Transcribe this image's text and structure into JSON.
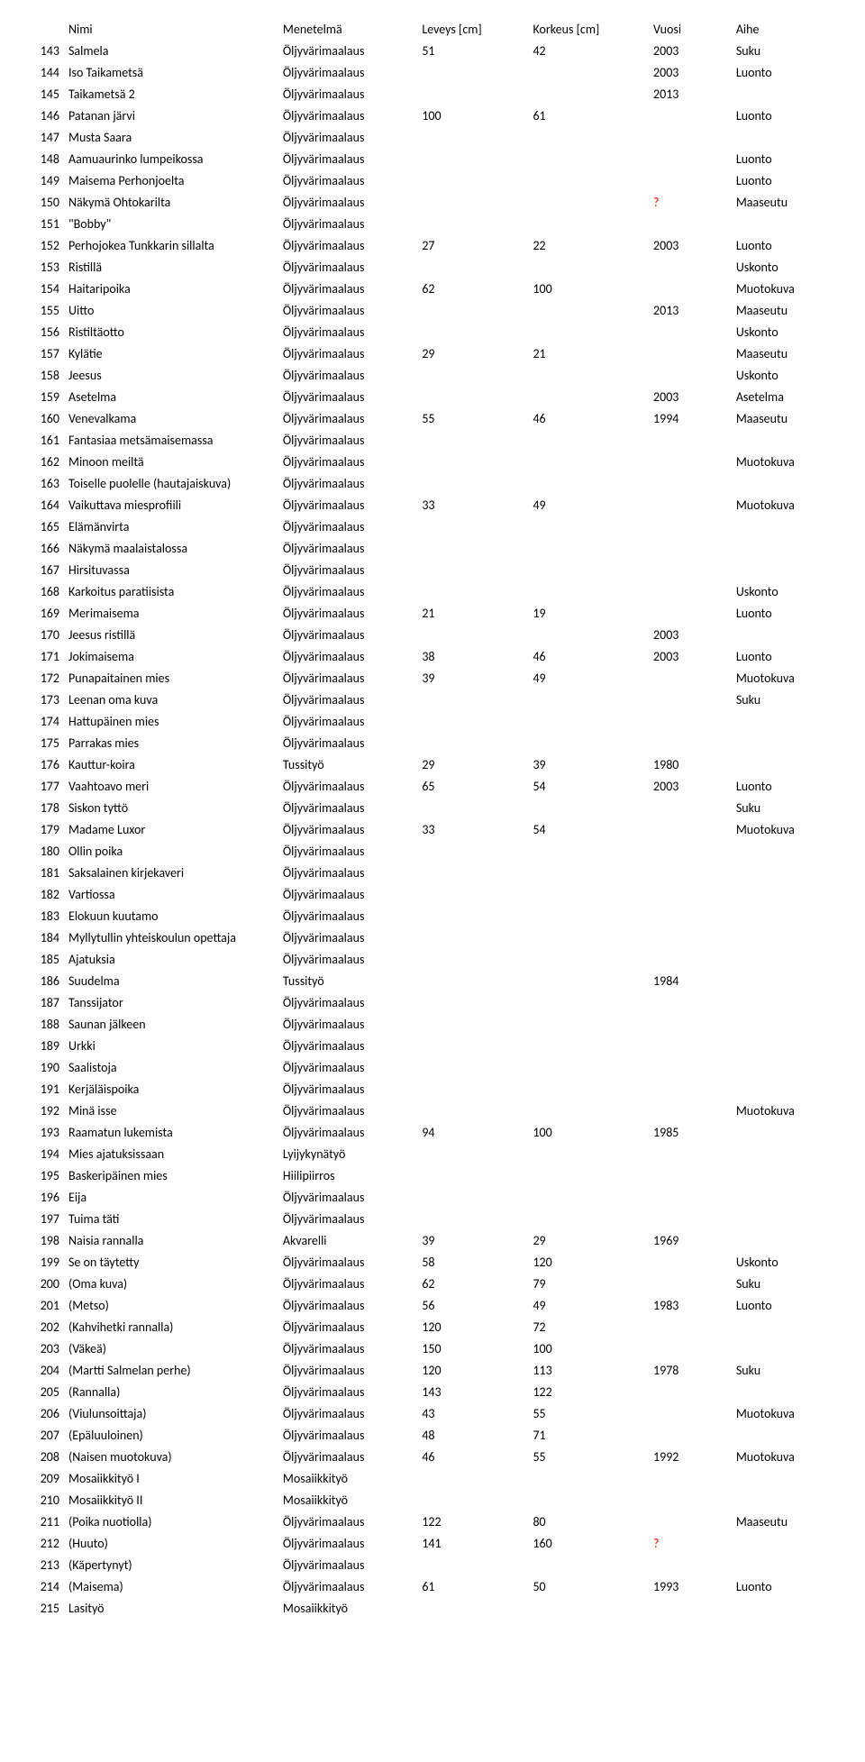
{
  "headers": {
    "name": "Nimi",
    "method": "Menetelmä",
    "width": "Leveys [cm]",
    "height": "Korkeus [cm]",
    "year": "Vuosi",
    "subject": "Aihe"
  },
  "rows": [
    {
      "num": "143",
      "name": "Salmela",
      "method": "Öljyvärimaalaus",
      "w": "51",
      "h": "42",
      "year": "2003",
      "subject": "Suku"
    },
    {
      "num": "144",
      "name": "Iso Taikametsä",
      "method": "Öljyvärimaalaus",
      "w": "",
      "h": "",
      "year": "2003",
      "subject": "Luonto"
    },
    {
      "num": "145",
      "name": "Taikametsä 2",
      "method": "Öljyvärimaalaus",
      "w": "",
      "h": "",
      "year": "2013",
      "subject": ""
    },
    {
      "num": "146",
      "name": "Patanan järvi",
      "method": "Öljyvärimaalaus",
      "w": "100",
      "h": "61",
      "year": "",
      "subject": "Luonto"
    },
    {
      "num": "147",
      "name": "Musta Saara",
      "method": "Öljyvärimaalaus",
      "w": "",
      "h": "",
      "year": "",
      "subject": ""
    },
    {
      "num": "148",
      "name": "Aamuaurinko lumpeikossa",
      "method": "Öljyvärimaalaus",
      "w": "",
      "h": "",
      "year": "",
      "subject": "Luonto"
    },
    {
      "num": "149",
      "name": " Maisema Perhonjoelta",
      "method": "Öljyvärimaalaus",
      "w": "",
      "h": "",
      "year": "",
      "subject": "Luonto"
    },
    {
      "num": "150",
      "name": " Näkymä Ohtokarilta",
      "method": "Öljyvärimaalaus",
      "w": "",
      "h": "",
      "year": "?",
      "year_red": true,
      "subject": "Maaseutu"
    },
    {
      "num": "151",
      "name": "\"Bobby\"",
      "method": "Öljyvärimaalaus",
      "w": "",
      "h": "",
      "year": "",
      "subject": ""
    },
    {
      "num": "152",
      "name": "Perhojokea Tunkkarin sillalta",
      "method": "Öljyvärimaalaus",
      "w": "27",
      "h": "22",
      "year": "2003",
      "subject": "Luonto"
    },
    {
      "num": "153",
      "name": "Ristillä",
      "method": "Öljyvärimaalaus",
      "w": "",
      "h": "",
      "year": "",
      "subject": "Uskonto"
    },
    {
      "num": "154",
      "name": "Haitaripoika",
      "method": "Öljyvärimaalaus",
      "w": "62",
      "h": "100",
      "year": "",
      "subject": "Muotokuva"
    },
    {
      "num": "155",
      "name": "Uitto",
      "method": "Öljyvärimaalaus",
      "w": "",
      "h": "",
      "year": "2013",
      "subject": "Maaseutu"
    },
    {
      "num": "156",
      "name": " Ristiltäotto",
      "method": "Öljyvärimaalaus",
      "w": "",
      "h": "",
      "year": "",
      "subject": "Uskonto"
    },
    {
      "num": "157",
      "name": "Kylätie",
      "method": "Öljyvärimaalaus",
      "w": "29",
      "h": "21",
      "year": "",
      "subject": "Maaseutu"
    },
    {
      "num": "158",
      "name": "Jeesus",
      "method": "Öljyvärimaalaus",
      "w": "",
      "h": "",
      "year": "",
      "subject": "Uskonto"
    },
    {
      "num": "159",
      "name": "Asetelma",
      "method": "Öljyvärimaalaus",
      "w": "",
      "h": "",
      "year": "2003",
      "subject": "Asetelma"
    },
    {
      "num": "160",
      "name": "Venevalkama",
      "method": "Öljyvärimaalaus",
      "w": "55",
      "h": "46",
      "year": "1994",
      "subject": "Maaseutu"
    },
    {
      "num": "161",
      "name": "Fantasiaa metsämaisemassa",
      "method": "Öljyvärimaalaus",
      "w": "",
      "h": "",
      "year": "",
      "subject": ""
    },
    {
      "num": "162",
      "name": "Minoon meiltä",
      "method": "Öljyvärimaalaus",
      "w": "",
      "h": "",
      "year": "",
      "subject": "Muotokuva"
    },
    {
      "num": "163",
      "name": "Toiselle puolelle (hautajaiskuva)",
      "method": "Öljyvärimaalaus",
      "w": "",
      "h": "",
      "year": "",
      "subject": ""
    },
    {
      "num": "164",
      "name": "Vaikuttava miesprofiili",
      "method": "Öljyvärimaalaus",
      "w": "33",
      "h": "49",
      "year": "",
      "subject": "Muotokuva"
    },
    {
      "num": "165",
      "name": " Elämänvirta",
      "method": "Öljyvärimaalaus",
      "w": "",
      "h": "",
      "year": "",
      "subject": ""
    },
    {
      "num": "166",
      "name": " Näkymä maalaistalossa",
      "method": "Öljyvärimaalaus",
      "w": "",
      "h": "",
      "year": "",
      "subject": ""
    },
    {
      "num": "167",
      "name": "Hirsituvassa",
      "method": "Öljyvärimaalaus",
      "w": "",
      "h": "",
      "year": "",
      "subject": ""
    },
    {
      "num": "168",
      "name": "Karkoitus paratiisista",
      "method": "Öljyvärimaalaus",
      "w": "",
      "h": "",
      "year": "",
      "subject": "Uskonto"
    },
    {
      "num": "169",
      "name": "Merimaisema",
      "method": "Öljyvärimaalaus",
      "w": "21",
      "h": "19",
      "year": "",
      "subject": "Luonto"
    },
    {
      "num": "170",
      "name": "Jeesus ristillä",
      "method": "Öljyvärimaalaus",
      "w": "",
      "h": "",
      "year": "2003",
      "subject": ""
    },
    {
      "num": "171",
      "name": "Jokimaisema",
      "method": "Öljyvärimaalaus",
      "w": "38",
      "h": "46",
      "year": "2003",
      "subject": "Luonto"
    },
    {
      "num": "172",
      "name": "Punapaitainen mies",
      "method": "Öljyvärimaalaus",
      "w": "39",
      "h": "49",
      "year": "",
      "subject": "Muotokuva"
    },
    {
      "num": "173",
      "name": "Leenan oma kuva",
      "method": "Öljyvärimaalaus",
      "w": "",
      "h": "",
      "year": "",
      "subject": "Suku"
    },
    {
      "num": "174",
      "name": "Hattupäinen mies",
      "method": "Öljyvärimaalaus",
      "w": "",
      "h": "",
      "year": "",
      "subject": ""
    },
    {
      "num": "175",
      "name": "Parrakas mies",
      "method": "Öljyvärimaalaus",
      "w": "",
      "h": "",
      "year": "",
      "subject": ""
    },
    {
      "num": "176",
      "name": "Kauttur-koira",
      "method": "Tussityö",
      "w": "29",
      "h": "39",
      "year": "1980",
      "subject": ""
    },
    {
      "num": "177",
      "name": "Vaahtoavo meri",
      "method": "Öljyvärimaalaus",
      "w": "65",
      "h": "54",
      "year": "2003",
      "subject": "Luonto"
    },
    {
      "num": "178",
      "name": "Siskon tyttö",
      "method": "Öljyvärimaalaus",
      "w": "",
      "h": "",
      "year": "",
      "subject": "Suku"
    },
    {
      "num": "179",
      "name": "Madame Luxor",
      "method": "Öljyvärimaalaus",
      "w": "33",
      "h": "54",
      "year": "",
      "subject": "Muotokuva"
    },
    {
      "num": "180",
      "name": "Ollin poika",
      "method": "Öljyvärimaalaus",
      "w": "",
      "h": "",
      "year": "",
      "subject": ""
    },
    {
      "num": "181",
      "name": "Saksalainen kirjekaveri",
      "method": "Öljyvärimaalaus",
      "w": "",
      "h": "",
      "year": "",
      "subject": ""
    },
    {
      "num": "182",
      "name": "Vartiossa",
      "method": "Öljyvärimaalaus",
      "w": "",
      "h": "",
      "year": "",
      "subject": ""
    },
    {
      "num": "183",
      "name": " Elokuun kuutamo",
      "method": "Öljyvärimaalaus",
      "w": "",
      "h": "",
      "year": "",
      "subject": ""
    },
    {
      "num": "184",
      "name": " Myllytullin yhteiskoulun opettaja",
      "method": "Öljyvärimaalaus",
      "w": "",
      "h": "",
      "year": "",
      "subject": ""
    },
    {
      "num": "185",
      "name": " Ajatuksia",
      "method": "Öljyvärimaalaus",
      "w": "",
      "h": "",
      "year": "",
      "subject": ""
    },
    {
      "num": "186",
      "name": " Suudelma",
      "method": "Tussityö",
      "w": "",
      "h": "",
      "year": "1984",
      "subject": ""
    },
    {
      "num": "187",
      "name": " Tanssijator",
      "method": "Öljyvärimaalaus",
      "w": "",
      "h": "",
      "year": "",
      "subject": ""
    },
    {
      "num": "188",
      "name": " Saunan jälkeen",
      "method": "Öljyvärimaalaus",
      "w": "",
      "h": "",
      "year": "",
      "subject": ""
    },
    {
      "num": "189",
      "name": " Urkki",
      "method": "Öljyvärimaalaus",
      "w": "",
      "h": "",
      "year": "",
      "subject": ""
    },
    {
      "num": "190",
      "name": " Saalistoja",
      "method": "Öljyvärimaalaus",
      "w": "",
      "h": "",
      "year": "",
      "subject": ""
    },
    {
      "num": "191",
      "name": " Kerjäläispoika",
      "method": "Öljyvärimaalaus",
      "w": "",
      "h": "",
      "year": "",
      "subject": ""
    },
    {
      "num": "192",
      "name": " Minä isse",
      "method": "Öljyvärimaalaus",
      "w": "",
      "h": "",
      "year": "",
      "subject": "Muotokuva"
    },
    {
      "num": "193",
      "name": " Raamatun lukemista",
      "method": "Öljyvärimaalaus",
      "w": "94",
      "h": "100",
      "year": "1985",
      "subject": ""
    },
    {
      "num": "194",
      "name": " Mies ajatuksissaan",
      "method": "Lyijykynätyö",
      "w": "",
      "h": "",
      "year": "",
      "subject": ""
    },
    {
      "num": "195",
      "name": " Baskeripäinen mies",
      "method": "Hiilipiirros",
      "w": "",
      "h": "",
      "year": "",
      "subject": ""
    },
    {
      "num": "196",
      "name": " Eija",
      "method": "Öljyvärimaalaus",
      "w": "",
      "h": "",
      "year": "",
      "subject": ""
    },
    {
      "num": "197",
      "name": " Tuima täti",
      "method": "Öljyvärimaalaus",
      "w": "",
      "h": "",
      "year": "",
      "subject": ""
    },
    {
      "num": "198",
      "name": " Naisia rannalla",
      "method": "Akvarelli",
      "w": "39",
      "h": "29",
      "year": "1969",
      "subject": ""
    },
    {
      "num": "199",
      "name": "Se on täytetty",
      "method": "Öljyvärimaalaus",
      "w": "58",
      "h": "120",
      "year": "",
      "subject": "Uskonto"
    },
    {
      "num": "200",
      "name": " (Oma kuva)",
      "method": "Öljyvärimaalaus",
      "w": "62",
      "h": "79",
      "year": "",
      "subject": "Suku"
    },
    {
      "num": "201",
      "name": "(Metso)",
      "method": "Öljyvärimaalaus",
      "w": "56",
      "h": "49",
      "year": "1983",
      "subject": "Luonto"
    },
    {
      "num": "202",
      "name": "(Kahvihetki rannalla)",
      "method": "Öljyvärimaalaus",
      "w": "120",
      "h": "72",
      "year": "",
      "subject": ""
    },
    {
      "num": "203",
      "name": "(Väkeä)",
      "method": "Öljyvärimaalaus",
      "w": "150",
      "h": "100",
      "year": "",
      "subject": ""
    },
    {
      "num": "204",
      "name": "(Martti Salmelan perhe)",
      "method": "Öljyvärimaalaus",
      "w": "120",
      "h": "113",
      "year": "1978",
      "subject": "Suku"
    },
    {
      "num": "205",
      "name": "(Rannalla)",
      "method": "Öljyvärimaalaus",
      "w": "143",
      "h": "122",
      "year": "",
      "subject": ""
    },
    {
      "num": "206",
      "name": "(Viulunsoittaja)",
      "method": "Öljyvärimaalaus",
      "w": "43",
      "h": "55",
      "year": "",
      "subject": "Muotokuva"
    },
    {
      "num": "207",
      "name": "(Epäluuloinen)",
      "method": "Öljyvärimaalaus",
      "w": "48",
      "h": "71",
      "year": "",
      "subject": ""
    },
    {
      "num": "208",
      "name": "(Naisen muotokuva)",
      "method": "Öljyvärimaalaus",
      "w": "46",
      "h": "55",
      "year": "1992",
      "subject": "Muotokuva"
    },
    {
      "num": "209",
      "name": "Mosaiikkityö I",
      "method": "Mosaiikkityö",
      "w": "",
      "h": "",
      "year": "",
      "subject": ""
    },
    {
      "num": "210",
      "name": "Mosaiikkityö II",
      "method": "Mosaiikkityö",
      "w": "",
      "h": "",
      "year": "",
      "subject": ""
    },
    {
      "num": "211",
      "name": "(Poika nuotiolla)",
      "method": "Öljyvärimaalaus",
      "w": "122",
      "h": "80",
      "year": "",
      "subject": "Maaseutu"
    },
    {
      "num": "212",
      "name": "(Huuto)",
      "method": "Öljyvärimaalaus",
      "w": "141",
      "h": "160",
      "year": "?",
      "year_red": true,
      "subject": ""
    },
    {
      "num": "213",
      "name": "(Käpertynyt)",
      "method": "Öljyvärimaalaus",
      "w": "",
      "h": "",
      "year": "",
      "subject": ""
    },
    {
      "num": "214",
      "name": "(Maisema)",
      "method": "Öljyvärimaalaus",
      "w": "61",
      "h": "50",
      "year": "1993",
      "subject": "Luonto"
    },
    {
      "num": "215",
      "name": "Lasityö",
      "method": "Mosaiikkityö",
      "w": "",
      "h": "",
      "year": "",
      "subject": ""
    }
  ]
}
